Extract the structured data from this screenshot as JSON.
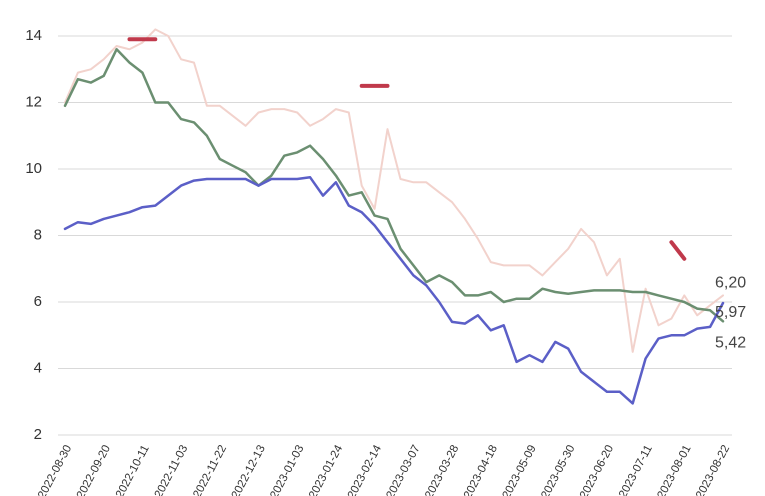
{
  "chart_data": {
    "type": "line",
    "categories": [
      "2022-08-30",
      null,
      null,
      "2022-09-20",
      null,
      null,
      "2022-10-11",
      null,
      null,
      "2022-11-03",
      null,
      null,
      "2022-11-22",
      null,
      null,
      "2022-12-13",
      null,
      null,
      "2023-01-03",
      null,
      null,
      "2023-01-24",
      null,
      null,
      "2023-02-14",
      null,
      null,
      "2023-03-07",
      null,
      null,
      "2023-03-28",
      null,
      null,
      "2023-04-18",
      null,
      null,
      "2023-05-09",
      null,
      null,
      "2023-05-30",
      null,
      null,
      "2023-06-20",
      null,
      null,
      "2023-07-11",
      null,
      null,
      "2023-08-01",
      null,
      null,
      "2023-08-22"
    ],
    "series": [
      {
        "color": "#f2d2cc",
        "values": [
          12.0,
          12.9,
          13.0,
          13.3,
          13.7,
          13.6,
          13.8,
          14.2,
          14.0,
          13.3,
          13.2,
          11.9,
          11.9,
          11.6,
          11.3,
          11.7,
          11.8,
          11.8,
          11.7,
          11.3,
          11.5,
          11.8,
          11.7,
          9.5,
          8.8,
          11.2,
          9.7,
          9.6,
          9.6,
          9.3,
          9.0,
          8.5,
          7.9,
          7.2,
          7.1,
          7.1,
          7.1,
          6.8,
          7.2,
          7.6,
          8.2,
          7.8,
          6.8,
          7.3,
          4.5,
          6.4,
          5.3,
          5.5,
          6.2,
          5.6,
          5.9,
          6.2
        ],
        "value_labels": [
          null,
          null,
          null,
          null,
          null,
          null,
          null,
          null,
          null,
          null,
          null,
          null,
          null,
          null,
          null,
          null,
          null,
          null,
          null,
          null,
          null,
          null,
          null,
          null,
          null,
          null,
          null,
          null,
          null,
          null,
          null,
          null,
          null,
          null,
          null,
          null,
          null,
          null,
          null,
          null,
          null,
          null,
          null,
          null,
          null,
          null,
          null,
          null,
          null,
          null,
          null,
          "6,20"
        ]
      },
      {
        "color": "#6b8f71",
        "values": [
          11.9,
          12.7,
          12.6,
          12.8,
          13.6,
          13.2,
          12.9,
          12.0,
          12.0,
          11.5,
          11.4,
          11.0,
          10.3,
          10.1,
          9.9,
          9.5,
          9.8,
          10.4,
          10.5,
          10.7,
          10.3,
          9.8,
          9.2,
          9.3,
          8.6,
          8.5,
          7.6,
          7.1,
          6.6,
          6.8,
          6.6,
          6.2,
          6.2,
          6.3,
          6.0,
          6.1,
          6.1,
          6.4,
          6.3,
          6.25,
          6.3,
          6.35,
          6.35,
          6.35,
          6.3,
          6.3,
          6.2,
          6.1,
          6.0,
          5.8,
          5.75,
          5.42
        ],
        "value_labels": [
          null,
          null,
          null,
          null,
          null,
          null,
          null,
          null,
          null,
          null,
          null,
          null,
          null,
          null,
          null,
          null,
          null,
          null,
          null,
          null,
          null,
          null,
          null,
          null,
          null,
          null,
          null,
          null,
          null,
          null,
          null,
          null,
          null,
          null,
          null,
          null,
          null,
          null,
          null,
          null,
          null,
          null,
          null,
          null,
          null,
          null,
          null,
          null,
          null,
          null,
          null,
          "5,42"
        ]
      },
      {
        "color": "#5b5fc7",
        "values": [
          8.2,
          8.4,
          8.35,
          8.5,
          8.6,
          8.7,
          8.85,
          8.9,
          9.2,
          9.5,
          9.65,
          9.7,
          9.7,
          9.7,
          9.7,
          9.5,
          9.7,
          9.7,
          9.7,
          9.75,
          9.2,
          9.6,
          8.9,
          8.7,
          8.3,
          7.8,
          7.3,
          6.8,
          6.5,
          6.0,
          5.4,
          5.35,
          5.6,
          5.15,
          5.3,
          4.2,
          4.4,
          4.2,
          4.8,
          4.6,
          3.9,
          3.6,
          3.3,
          3.3,
          2.95,
          4.3,
          4.9,
          5.0,
          5.0,
          5.2,
          5.25,
          5.97
        ],
        "value_labels": [
          null,
          null,
          null,
          null,
          null,
          null,
          null,
          null,
          null,
          null,
          null,
          null,
          null,
          null,
          null,
          null,
          null,
          null,
          null,
          null,
          null,
          null,
          null,
          null,
          null,
          null,
          null,
          null,
          null,
          null,
          null,
          null,
          null,
          null,
          null,
          null,
          null,
          null,
          null,
          null,
          null,
          null,
          null,
          null,
          null,
          null,
          null,
          null,
          null,
          null,
          null,
          "5,97"
        ]
      },
      {
        "color": "#c0394b",
        "values": [
          null,
          null,
          null,
          null,
          null,
          13.9,
          13.9,
          13.9,
          null,
          null,
          null,
          null,
          null,
          null,
          null,
          null,
          null,
          null,
          null,
          null,
          null,
          null,
          null,
          12.5,
          12.5,
          12.5,
          null,
          null,
          null,
          null,
          null,
          null,
          null,
          null,
          null,
          null,
          null,
          null,
          null,
          null,
          null,
          null,
          null,
          null,
          null,
          null,
          null,
          7.8,
          7.3,
          null,
          null,
          null
        ]
      }
    ],
    "ylim": [
      2,
      14
    ],
    "yticks": [
      2,
      4,
      6,
      8,
      10,
      12,
      14
    ],
    "grid": true
  }
}
